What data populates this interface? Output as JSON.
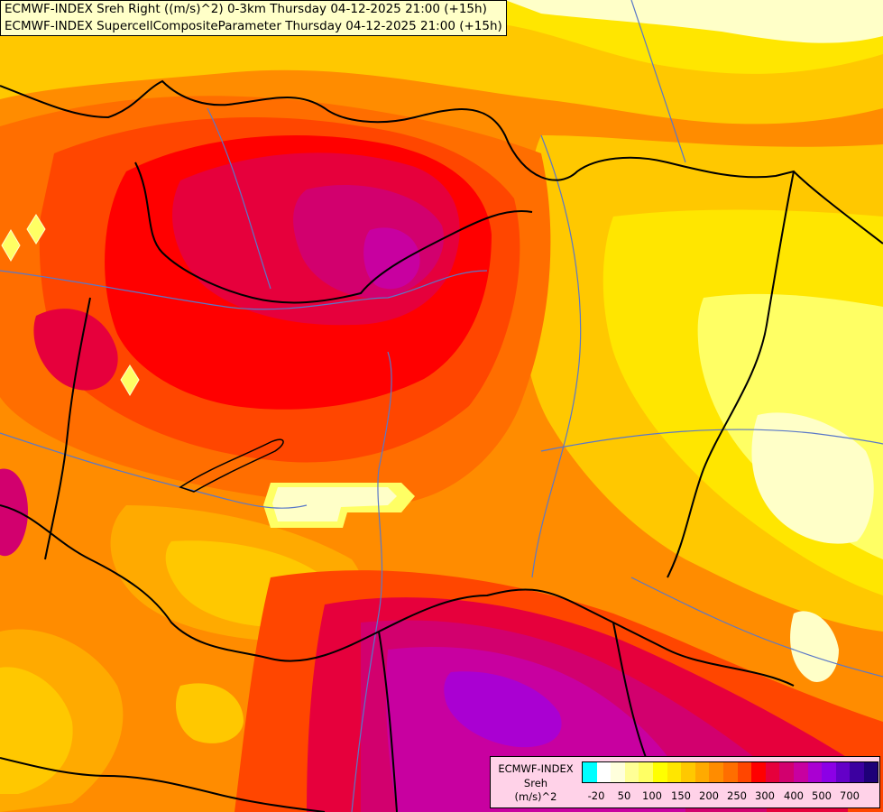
{
  "header": {
    "line1": "ECMWF-INDEX Sreh Right ((m/s)^2) 0-3km Thursday 04-12-2025 21:00 (+15h)",
    "line2": "ECMWF-INDEX SupercellCompositeParameter Thursday 04-12-2025 21:00 (+15h)"
  },
  "legend": {
    "title_line1": "ECMWF-INDEX",
    "title_line2": "Sreh",
    "title_line3": "(m/s)^2",
    "colors": [
      "#00ffff",
      "#ffffff",
      "#ffffdc",
      "#ffff96",
      "#ffff64",
      "#ffff00",
      "#ffe600",
      "#ffc800",
      "#ffaa00",
      "#ff8c00",
      "#ff6e00",
      "#ff4600",
      "#ff0000",
      "#e6003c",
      "#d2006e",
      "#c800a0",
      "#aa00d2",
      "#8c00e6",
      "#6400c8",
      "#3c00a0",
      "#1e0078"
    ],
    "ticks": [
      "-20",
      "50",
      "100",
      "150",
      "200",
      "250",
      "300",
      "400",
      "500",
      "700"
    ]
  },
  "map_colors": {
    "pale": "#ffffc8",
    "light_yellow": "#ffff64",
    "yellow": "#ffe600",
    "gold": "#ffc800",
    "light_orange": "#ffaa00",
    "orange": "#ff8c00",
    "dark_orange": "#ff6e00",
    "red_orange": "#ff4600",
    "red": "#ff0000",
    "crimson": "#e6003c",
    "magenta": "#c8006e",
    "purple": "#b400b4",
    "violet": "#9600dc",
    "border": "#000000",
    "river": "#5a78c8"
  }
}
